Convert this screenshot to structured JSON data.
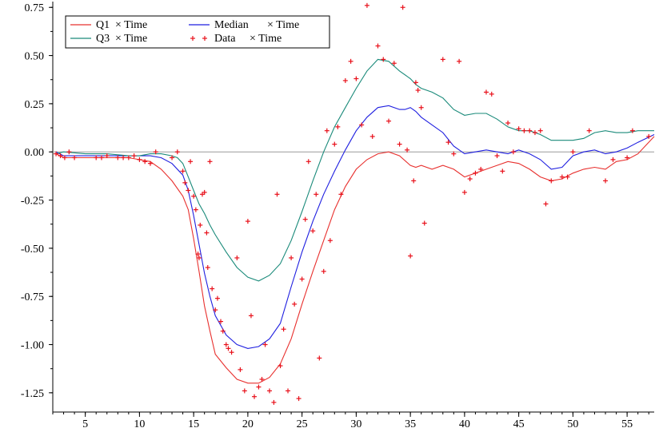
{
  "chart_data": {
    "type": "line",
    "xlim": [
      2,
      57.5
    ],
    "ylim": [
      -1.35,
      0.78
    ],
    "grid": false,
    "legend_position": "top-left",
    "x_ticks": [
      5,
      10,
      15,
      20,
      25,
      30,
      35,
      40,
      45,
      50,
      55
    ],
    "y_ticks": [
      0.75,
      0.5,
      0.25,
      0.0,
      -0.25,
      -0.5,
      -0.75,
      -1.0,
      -1.25
    ],
    "y_tick_labels": [
      "0.75",
      "0.50",
      "0.25",
      "0.00",
      "-0.25",
      "-0.50",
      "-0.75",
      "-1.00",
      "-1.25"
    ],
    "reference_line_y": 0,
    "legend": [
      {
        "label": "Q1",
        "suffix": "× Time"
      },
      {
        "label": "Median",
        "suffix": "× Time"
      },
      {
        "label": "Q3",
        "suffix": "× Time"
      },
      {
        "label": "Data",
        "suffix": "× Time"
      }
    ],
    "series": [
      {
        "name": "Q1",
        "color": "#e8302e",
        "x": [
          2.3,
          3,
          5,
          7,
          9,
          11,
          12,
          13,
          14,
          14.5,
          15,
          15.5,
          16,
          16.5,
          17,
          18,
          19,
          20,
          21,
          22,
          23,
          24,
          25,
          26,
          27,
          28,
          29,
          30,
          31,
          32,
          33,
          34,
          35,
          35.5,
          36,
          37,
          38,
          39,
          40,
          41,
          42,
          43,
          44,
          45,
          46,
          47,
          48,
          49,
          50,
          51,
          52,
          53,
          54,
          55,
          56,
          57.5
        ],
        "y": [
          -0.01,
          -0.03,
          -0.03,
          -0.03,
          -0.03,
          -0.05,
          -0.09,
          -0.15,
          -0.23,
          -0.3,
          -0.45,
          -0.62,
          -0.8,
          -0.93,
          -1.05,
          -1.12,
          -1.18,
          -1.2,
          -1.2,
          -1.17,
          -1.1,
          -0.97,
          -0.79,
          -0.62,
          -0.46,
          -0.3,
          -0.18,
          -0.09,
          -0.04,
          -0.01,
          0.0,
          -0.02,
          -0.07,
          -0.08,
          -0.07,
          -0.09,
          -0.07,
          -0.09,
          -0.13,
          -0.11,
          -0.09,
          -0.07,
          -0.05,
          -0.06,
          -0.09,
          -0.13,
          -0.15,
          -0.14,
          -0.11,
          -0.09,
          -0.08,
          -0.09,
          -0.05,
          -0.04,
          -0.01,
          0.08
        ]
      },
      {
        "name": "Median",
        "color": "#1f1fe0",
        "x": [
          2.3,
          3,
          5,
          7,
          9,
          10,
          11,
          12,
          13,
          14,
          14.5,
          15,
          15.5,
          16,
          16.5,
          17,
          18,
          19,
          20,
          21,
          22,
          23,
          24,
          25,
          26,
          27,
          28,
          29,
          30,
          31,
          32,
          33,
          34,
          34.5,
          35,
          35.5,
          36,
          37,
          38,
          39,
          40,
          41,
          42,
          43,
          44,
          45,
          46,
          47,
          48,
          49,
          50,
          51,
          52,
          53,
          54,
          55,
          56,
          57.5
        ],
        "y": [
          0.0,
          -0.02,
          -0.02,
          -0.02,
          -0.02,
          -0.02,
          -0.02,
          -0.03,
          -0.06,
          -0.12,
          -0.2,
          -0.33,
          -0.48,
          -0.63,
          -0.75,
          -0.85,
          -0.95,
          -1.0,
          -1.02,
          -1.01,
          -0.97,
          -0.89,
          -0.7,
          -0.52,
          -0.36,
          -0.22,
          -0.1,
          0.01,
          0.11,
          0.18,
          0.23,
          0.24,
          0.22,
          0.22,
          0.23,
          0.21,
          0.18,
          0.14,
          0.1,
          0.03,
          -0.01,
          0.0,
          0.01,
          0.0,
          -0.01,
          0.01,
          -0.01,
          -0.04,
          -0.09,
          -0.08,
          -0.02,
          0.0,
          0.01,
          -0.01,
          0.0,
          0.02,
          0.05,
          0.09
        ]
      },
      {
        "name": "Q3",
        "color": "#1a8a7a",
        "x": [
          2.3,
          3,
          5,
          7,
          9,
          10,
          11,
          12,
          13,
          13.5,
          14,
          14.5,
          15,
          15.5,
          16,
          16.5,
          17,
          18,
          19,
          20,
          21,
          22,
          23,
          24,
          25,
          26,
          27,
          28,
          29,
          30,
          31,
          32,
          33,
          34,
          35,
          35.5,
          36,
          37,
          38,
          39,
          40,
          41,
          42,
          43,
          44,
          45,
          46,
          47,
          48,
          49,
          50,
          51,
          52,
          53,
          54,
          55,
          56,
          57.5
        ],
        "y": [
          -0.01,
          0.0,
          -0.01,
          -0.01,
          -0.02,
          -0.02,
          -0.01,
          -0.01,
          -0.02,
          -0.03,
          -0.06,
          -0.13,
          -0.2,
          -0.27,
          -0.32,
          -0.38,
          -0.43,
          -0.52,
          -0.6,
          -0.65,
          -0.67,
          -0.64,
          -0.58,
          -0.46,
          -0.31,
          -0.15,
          0.0,
          0.13,
          0.23,
          0.33,
          0.42,
          0.48,
          0.47,
          0.42,
          0.38,
          0.35,
          0.33,
          0.31,
          0.28,
          0.22,
          0.19,
          0.2,
          0.2,
          0.17,
          0.13,
          0.11,
          0.11,
          0.09,
          0.06,
          0.06,
          0.06,
          0.07,
          0.1,
          0.11,
          0.1,
          0.1,
          0.11,
          0.11
        ]
      },
      {
        "name": "Data",
        "color": "#e8101a",
        "marker": "+",
        "x": [
          2.3,
          2.7,
          3.1,
          3.5,
          4,
          6,
          6.5,
          7,
          8,
          8.5,
          9,
          9.5,
          10,
          10.5,
          11,
          11.5,
          13,
          13.5,
          14,
          14.2,
          14.5,
          14.7,
          15,
          15.2,
          15.4,
          15.5,
          15.6,
          15.8,
          16,
          16.2,
          16.3,
          16.5,
          16.7,
          17,
          17.2,
          17.5,
          17.7,
          18,
          18.2,
          18.5,
          19,
          19.3,
          19.7,
          20,
          20.3,
          20.6,
          21,
          21.3,
          21.6,
          22,
          22.4,
          22.7,
          23,
          23.3,
          23.7,
          24,
          24.3,
          24.7,
          25,
          25.3,
          25.6,
          26,
          26.3,
          26.6,
          27,
          27.3,
          27.6,
          28,
          28.3,
          28.6,
          29,
          29.5,
          30,
          30.5,
          31,
          31.5,
          32,
          32.5,
          33,
          33.5,
          34,
          34.3,
          34.7,
          35,
          35.3,
          35.5,
          35.7,
          36,
          36.3,
          38,
          38.5,
          39,
          39.5,
          40,
          40.5,
          41,
          41.5,
          42,
          42.5,
          43,
          43.5,
          44,
          44.5,
          45,
          45.5,
          46,
          46.5,
          47,
          47.5,
          48,
          49,
          49.5,
          50,
          51.5,
          53,
          53.7,
          55,
          55.5,
          57
        ],
        "y": [
          -0.01,
          -0.02,
          -0.03,
          0.0,
          -0.03,
          -0.03,
          -0.03,
          -0.02,
          -0.03,
          -0.03,
          -0.03,
          -0.02,
          -0.04,
          -0.05,
          -0.06,
          0.0,
          -0.03,
          0.0,
          -0.1,
          -0.16,
          -0.2,
          -0.05,
          -0.23,
          -0.3,
          -0.53,
          -0.55,
          -0.38,
          -0.22,
          -0.21,
          -0.42,
          -0.6,
          -0.05,
          -0.71,
          -0.82,
          -0.76,
          -0.88,
          -0.93,
          -1.0,
          -1.02,
          -1.04,
          -0.55,
          -1.13,
          -1.24,
          -0.36,
          -0.85,
          -1.27,
          -1.22,
          -1.18,
          -1.0,
          -1.24,
          -1.3,
          -0.22,
          -1.11,
          -0.92,
          -1.24,
          -0.55,
          -0.79,
          -1.28,
          -0.66,
          -0.35,
          -0.05,
          -0.41,
          -0.22,
          -1.07,
          -0.62,
          0.11,
          -0.46,
          0.04,
          0.13,
          -0.22,
          0.37,
          0.47,
          0.38,
          0.14,
          0.76,
          0.08,
          0.55,
          0.48,
          0.16,
          0.46,
          0.04,
          0.75,
          0.01,
          -0.54,
          -0.15,
          0.36,
          0.32,
          0.23,
          -0.37,
          0.48,
          0.05,
          -0.01,
          0.47,
          -0.21,
          -0.14,
          -0.11,
          -0.09,
          0.31,
          0.3,
          -0.02,
          -0.1,
          0.15,
          0.0,
          0.12,
          0.11,
          0.11,
          0.1,
          0.11,
          -0.27,
          -0.15,
          -0.13,
          -0.13,
          0.0,
          0.11,
          -0.15,
          -0.04,
          -0.03,
          0.11,
          0.08
        ]
      }
    ]
  }
}
